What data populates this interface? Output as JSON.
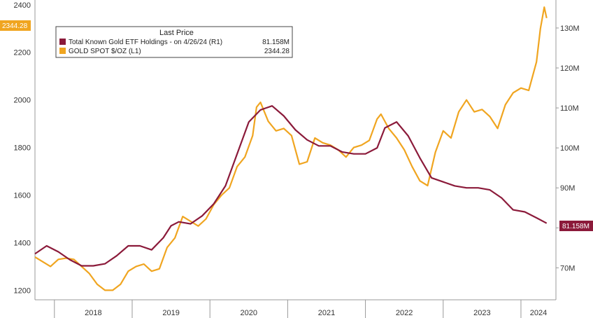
{
  "chart_data": {
    "type": "line",
    "legend": {
      "title": "Last Price",
      "placement": "top-left",
      "entries": [
        {
          "label": "Total Known Gold ETF Holdings - on 4/26/24 (R1)",
          "value": "81.158M",
          "color": "#8b1a3a"
        },
        {
          "label": "GOLD SPOT $/OZ (L1)",
          "value": "2344.28",
          "color": "#f0a520"
        }
      ]
    },
    "x_axis": {
      "labels": [
        "2018",
        "2019",
        "2020",
        "2021",
        "2022",
        "2023",
        "2024"
      ],
      "range": [
        2017.75,
        2024.45
      ]
    },
    "y_left": {
      "ticks": [
        "1200",
        "1400",
        "1600",
        "1800",
        "2000",
        "2200",
        "2400"
      ],
      "range": [
        1160,
        2420
      ],
      "last_value_tag": "2344.28"
    },
    "y_right": {
      "ticks": [
        "70M",
        "80M",
        "90M",
        "100M",
        "110M",
        "120M",
        "130M"
      ],
      "range": [
        62,
        137
      ],
      "last_value_tag": "81.158M"
    },
    "grid": false,
    "series": [
      {
        "name": "GOLD SPOT $/OZ",
        "axis": "left",
        "color": "#f0a520",
        "x": [
          2017.75,
          2017.85,
          2017.95,
          2018.05,
          2018.15,
          2018.25,
          2018.35,
          2018.45,
          2018.55,
          2018.65,
          2018.75,
          2018.85,
          2018.95,
          2019.05,
          2019.15,
          2019.25,
          2019.35,
          2019.45,
          2019.55,
          2019.65,
          2019.75,
          2019.85,
          2019.95,
          2020.05,
          2020.15,
          2020.25,
          2020.35,
          2020.45,
          2020.55,
          2020.6,
          2020.65,
          2020.75,
          2020.85,
          2020.95,
          2021.05,
          2021.15,
          2021.25,
          2021.35,
          2021.45,
          2021.55,
          2021.65,
          2021.75,
          2021.85,
          2021.95,
          2022.05,
          2022.15,
          2022.2,
          2022.3,
          2022.4,
          2022.5,
          2022.6,
          2022.7,
          2022.8,
          2022.9,
          2023.0,
          2023.1,
          2023.2,
          2023.3,
          2023.4,
          2023.5,
          2023.6,
          2023.7,
          2023.8,
          2023.9,
          2024.0,
          2024.1,
          2024.2,
          2024.25,
          2024.3,
          2024.33
        ],
        "y": [
          1340,
          1320,
          1300,
          1330,
          1335,
          1330,
          1300,
          1270,
          1225,
          1200,
          1200,
          1225,
          1280,
          1300,
          1310,
          1280,
          1290,
          1380,
          1420,
          1510,
          1490,
          1470,
          1500,
          1560,
          1600,
          1630,
          1720,
          1760,
          1850,
          1970,
          1990,
          1910,
          1870,
          1880,
          1850,
          1730,
          1740,
          1840,
          1820,
          1810,
          1790,
          1760,
          1800,
          1810,
          1830,
          1920,
          1940,
          1880,
          1840,
          1790,
          1720,
          1660,
          1640,
          1780,
          1870,
          1840,
          1950,
          2000,
          1950,
          1960,
          1930,
          1880,
          1980,
          2030,
          2050,
          2040,
          2160,
          2300,
          2390,
          2344
        ]
      },
      {
        "name": "Total Known Gold ETF Holdings",
        "axis": "right",
        "color": "#8b1a3a",
        "x": [
          2017.75,
          2017.9,
          2018.05,
          2018.2,
          2018.35,
          2018.5,
          2018.65,
          2018.8,
          2018.95,
          2019.1,
          2019.25,
          2019.4,
          2019.5,
          2019.6,
          2019.75,
          2019.9,
          2020.05,
          2020.2,
          2020.35,
          2020.5,
          2020.65,
          2020.8,
          2020.95,
          2021.1,
          2021.25,
          2021.4,
          2021.55,
          2021.7,
          2021.85,
          2022.0,
          2022.15,
          2022.25,
          2022.4,
          2022.55,
          2022.7,
          2022.85,
          2023.0,
          2023.15,
          2023.3,
          2023.45,
          2023.6,
          2023.75,
          2023.9,
          2024.05,
          2024.2,
          2024.33
        ],
        "y": [
          73.5,
          75.5,
          74.0,
          72.0,
          70.5,
          70.5,
          71.0,
          73.0,
          75.5,
          75.5,
          74.5,
          77.5,
          80.5,
          81.5,
          81.0,
          83.0,
          86.0,
          90.5,
          98.5,
          106.5,
          109.5,
          110.5,
          108.0,
          104.5,
          102.0,
          100.5,
          100.5,
          99.0,
          98.5,
          98.5,
          100.0,
          105.0,
          106.5,
          103.0,
          97.5,
          92.5,
          91.5,
          90.5,
          90.0,
          90.0,
          89.5,
          87.5,
          84.5,
          84.0,
          82.5,
          81.158
        ]
      }
    ]
  }
}
